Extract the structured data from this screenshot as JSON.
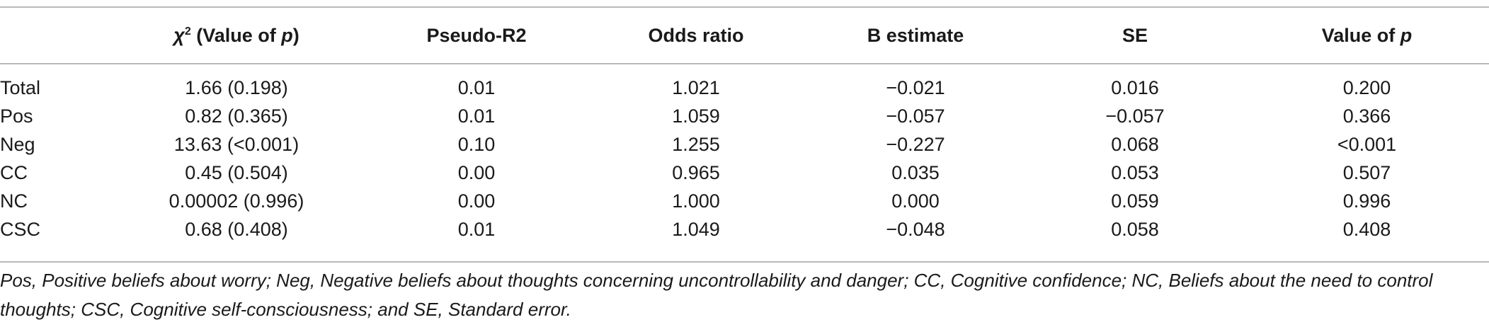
{
  "table": {
    "headers": {
      "chi_symbol": "χ",
      "chi_sup": "2",
      "chi_rest": " (Value of ",
      "chi_p": "p",
      "chi_close": ")",
      "pseudo_r2": "Pseudo-R2",
      "odds_ratio": "Odds ratio",
      "b_estimate": "B estimate",
      "se": "SE",
      "value_of": "Value of ",
      "value_p": "p"
    },
    "rows": [
      {
        "label": "Total",
        "chi2": "1.66 (0.198)",
        "pseudo_r2": "0.01",
        "odds_ratio": "1.021",
        "b_estimate": "−0.021",
        "se": "0.016",
        "p": "0.200"
      },
      {
        "label": "Pos",
        "chi2": "0.82 (0.365)",
        "pseudo_r2": "0.01",
        "odds_ratio": "1.059",
        "b_estimate": "−0.057",
        "se": "−0.057",
        "p": "0.366"
      },
      {
        "label": "Neg",
        "chi2": "13.63 (<0.001)",
        "pseudo_r2": "0.10",
        "odds_ratio": "1.255",
        "b_estimate": "−0.227",
        "se": "0.068",
        "p": "<0.001"
      },
      {
        "label": "CC",
        "chi2": "0.45 (0.504)",
        "pseudo_r2": "0.00",
        "odds_ratio": "0.965",
        "b_estimate": "0.035",
        "se": "0.053",
        "p": "0.507"
      },
      {
        "label": "NC",
        "chi2": "0.00002 (0.996)",
        "pseudo_r2": "0.00",
        "odds_ratio": "1.000",
        "b_estimate": "0.000",
        "se": "0.059",
        "p": "0.996"
      },
      {
        "label": "CSC",
        "chi2": "0.68 (0.408)",
        "pseudo_r2": "0.01",
        "odds_ratio": "1.049",
        "b_estimate": "−0.048",
        "se": "0.058",
        "p": "0.408"
      }
    ]
  },
  "footnote": "Pos, Positive beliefs about worry; Neg, Negative beliefs about thoughts concerning uncontrollability and danger; CC, Cognitive confidence; NC, Beliefs about the need to control thoughts; CSC, Cognitive self-consciousness; and SE, Standard error."
}
